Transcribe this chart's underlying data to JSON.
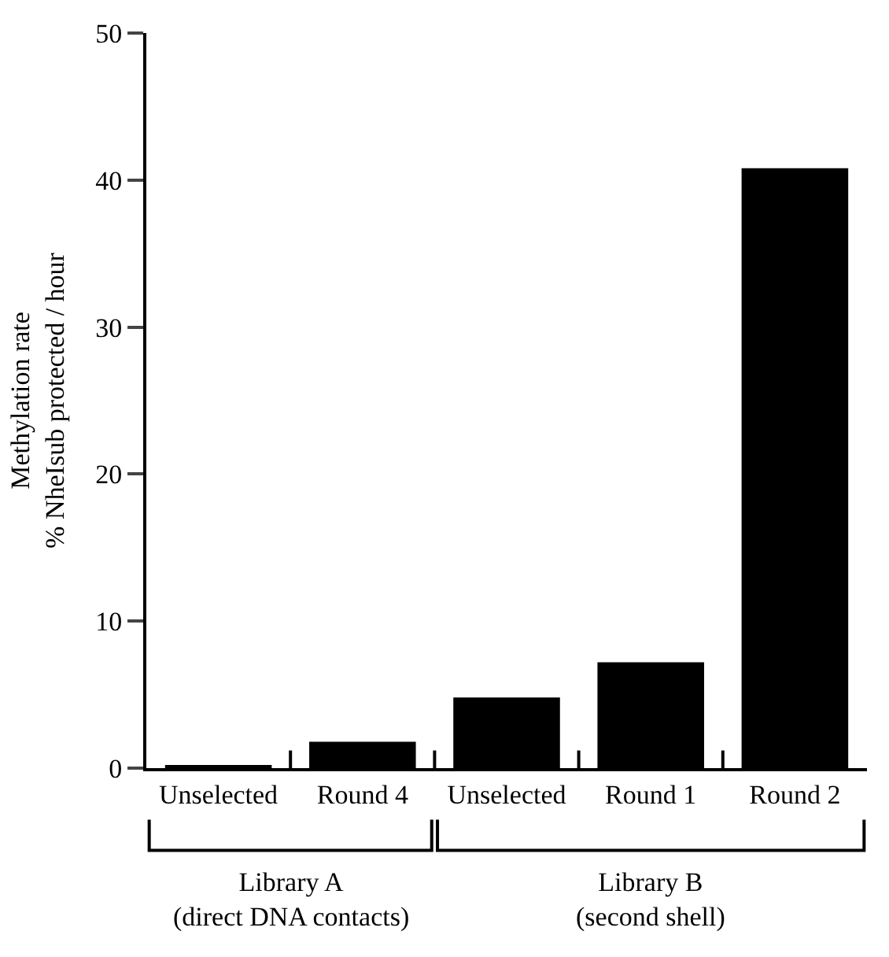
{
  "chart_data": {
    "type": "bar",
    "ylabel": "Methylation rate\n% NheIsub protected / hour",
    "categories": [
      "Unselected",
      "Round 4",
      "Unselected",
      "Round 1",
      "Round 2"
    ],
    "values": [
      0.2,
      1.8,
      4.8,
      7.2,
      40.8
    ],
    "color": "#000000",
    "ylim": [
      0,
      50
    ],
    "yticks": [
      0,
      10,
      20,
      30,
      40,
      50
    ],
    "legend": false,
    "annotations": [
      "Library A\n(direct DNA contacts)",
      "Library B\n(second shell)"
    ]
  }
}
